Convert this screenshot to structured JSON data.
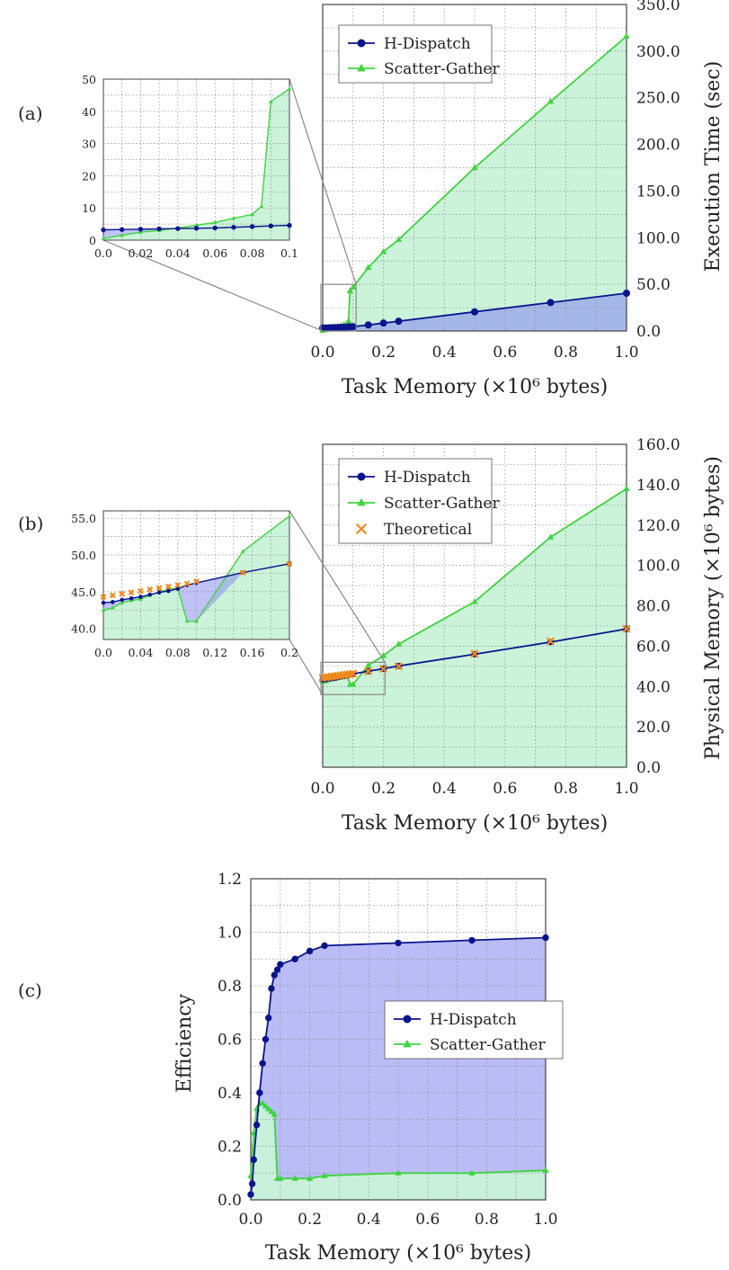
{
  "figure": {
    "colors": {
      "hdispatch": "#0a148c",
      "scatter": "#3fd43f",
      "theoretical": "#f08a1e",
      "fill_blue": "#8c8ff0",
      "fill_green": "#c8f2d8"
    },
    "panels": [
      {
        "label": "(a)",
        "main": {
          "xlabel": "Task Memory (×10⁶ bytes)",
          "ylabel": "Execution Time (sec)",
          "xticks": [
            "0.0",
            "0.2",
            "0.4",
            "0.6",
            "0.8",
            "1.0"
          ],
          "yticks": [
            "0.0",
            "50.0",
            "100.0",
            "150.0",
            "200.0",
            "250.0",
            "300.0",
            "350.0"
          ],
          "legend": [
            "H-Dispatch",
            "Scatter-Gather"
          ]
        },
        "inset": {
          "xticks": [
            "0.0",
            "0.02",
            "0.04",
            "0.06",
            "0.08",
            "0.1"
          ],
          "yticks": [
            "0",
            "10",
            "20",
            "30",
            "40",
            "50"
          ]
        }
      },
      {
        "label": "(b)",
        "main": {
          "xlabel": "Task Memory (×10⁶ bytes)",
          "ylabel": "Physical Memory (×10⁶ bytes)",
          "xticks": [
            "0.0",
            "0.2",
            "0.4",
            "0.6",
            "0.8",
            "1.0"
          ],
          "yticks": [
            "0.0",
            "20.0",
            "40.0",
            "60.0",
            "80.0",
            "100.0",
            "120.0",
            "140.0",
            "160.0"
          ],
          "legend": [
            "H-Dispatch",
            "Scatter-Gather",
            "Theoretical"
          ]
        },
        "inset": {
          "xticks": [
            "0.0",
            "0.04",
            "0.08",
            "0.12",
            "0.16",
            "0.2"
          ],
          "yticks": [
            "40.0",
            "45.0",
            "50.0",
            "55.0"
          ]
        }
      },
      {
        "label": "(c)",
        "main": {
          "xlabel": "Task Memory (×10⁶ bytes)",
          "ylabel": "Efficiency",
          "xticks": [
            "0.0",
            "0.2",
            "0.4",
            "0.6",
            "0.8",
            "1.0"
          ],
          "yticks": [
            "0.0",
            "0.2",
            "0.4",
            "0.6",
            "0.8",
            "1.0",
            "1.2"
          ],
          "legend": [
            "H-Dispatch",
            "Scatter-Gather"
          ]
        }
      }
    ]
  },
  "chart_data": [
    {
      "panel": "(a)",
      "type": "line",
      "xlabel": "Task Memory (×10⁶ bytes)",
      "ylabel": "Execution Time (sec)",
      "xlim": [
        0,
        1.0
      ],
      "ylim": [
        0,
        350
      ],
      "y_axis_side": "right",
      "grid": true,
      "legend_position": "top-left",
      "series": [
        {
          "name": "H-Dispatch",
          "marker": "circle",
          "x": [
            0.0,
            0.01,
            0.02,
            0.03,
            0.04,
            0.05,
            0.06,
            0.07,
            0.08,
            0.09,
            0.1,
            0.15,
            0.2,
            0.25,
            0.5,
            0.75,
            1.0
          ],
          "y": [
            3.2,
            3.3,
            3.4,
            3.5,
            3.6,
            3.7,
            3.8,
            4.0,
            4.2,
            4.4,
            4.6,
            6.5,
            8.5,
            10.5,
            20.5,
            30.5,
            40.5
          ]
        },
        {
          "name": "Scatter-Gather",
          "marker": "triangle",
          "x": [
            0.0,
            0.01,
            0.02,
            0.03,
            0.04,
            0.05,
            0.06,
            0.07,
            0.08,
            0.085,
            0.09,
            0.1,
            0.15,
            0.2,
            0.25,
            0.5,
            0.75,
            1.0
          ],
          "y": [
            0.5,
            1.5,
            2.5,
            3.0,
            3.8,
            4.6,
            5.5,
            6.8,
            8.0,
            10.5,
            43.0,
            47.0,
            68.0,
            85.0,
            98.0,
            175.0,
            246.0,
            316.0
          ]
        }
      ]
    },
    {
      "panel": "(a) inset",
      "type": "line",
      "xlim": [
        0,
        0.1
      ],
      "ylim": [
        0,
        50
      ],
      "grid": true,
      "series": [
        {
          "name": "H-Dispatch",
          "x": [
            0.0,
            0.01,
            0.02,
            0.03,
            0.04,
            0.05,
            0.06,
            0.07,
            0.08,
            0.09,
            0.1
          ],
          "y": [
            3.2,
            3.3,
            3.4,
            3.5,
            3.6,
            3.7,
            3.8,
            4.0,
            4.2,
            4.4,
            4.6
          ]
        },
        {
          "name": "Scatter-Gather",
          "x": [
            0.0,
            0.01,
            0.02,
            0.03,
            0.04,
            0.05,
            0.06,
            0.07,
            0.08,
            0.085,
            0.09,
            0.1
          ],
          "y": [
            0.5,
            1.5,
            2.5,
            3.0,
            3.8,
            4.6,
            5.5,
            6.8,
            8.0,
            10.5,
            43.0,
            47.0
          ]
        }
      ]
    },
    {
      "panel": "(b)",
      "type": "line",
      "xlabel": "Task Memory (×10⁶ bytes)",
      "ylabel": "Physical Memory (×10⁶ bytes)",
      "xlim": [
        0,
        1.0
      ],
      "ylim": [
        0,
        160
      ],
      "y_axis_side": "right",
      "grid": true,
      "legend_position": "top-left",
      "series": [
        {
          "name": "H-Dispatch",
          "marker": "circle",
          "x": [
            0.0,
            0.01,
            0.02,
            0.03,
            0.04,
            0.05,
            0.06,
            0.07,
            0.08,
            0.09,
            0.1,
            0.15,
            0.2,
            0.25,
            0.5,
            0.75,
            1.0
          ],
          "y": [
            43.5,
            43.6,
            43.9,
            44.1,
            44.3,
            44.6,
            44.9,
            45.1,
            45.4,
            45.9,
            46.2,
            47.6,
            48.8,
            50.2,
            56.0,
            62.0,
            68.5
          ]
        },
        {
          "name": "Scatter-Gather",
          "marker": "triangle",
          "x": [
            0.0,
            0.01,
            0.02,
            0.03,
            0.04,
            0.05,
            0.06,
            0.07,
            0.08,
            0.09,
            0.1,
            0.15,
            0.2,
            0.25,
            0.5,
            0.75,
            1.0
          ],
          "y": [
            42.5,
            42.8,
            43.5,
            43.8,
            44.0,
            44.5,
            45.0,
            45.3,
            45.5,
            41.0,
            41.0,
            50.5,
            55.3,
            61.0,
            82.0,
            114.0,
            138.0
          ]
        },
        {
          "name": "Theoretical",
          "marker": "x",
          "x": [
            0.0,
            0.01,
            0.02,
            0.03,
            0.04,
            0.05,
            0.06,
            0.07,
            0.08,
            0.09,
            0.1,
            0.15,
            0.2,
            0.25,
            0.5,
            0.75,
            1.0
          ],
          "y": [
            44.3,
            44.5,
            44.7,
            44.9,
            45.1,
            45.3,
            45.5,
            45.7,
            45.9,
            46.1,
            46.4,
            47.6,
            48.8,
            50.0,
            56.2,
            62.4,
            68.6
          ]
        }
      ]
    },
    {
      "panel": "(b) inset",
      "type": "line",
      "xlim": [
        0,
        0.2
      ],
      "ylim": [
        38.5,
        56
      ],
      "grid": true,
      "series": [
        {
          "name": "H-Dispatch",
          "x": [
            0.0,
            0.01,
            0.02,
            0.03,
            0.04,
            0.05,
            0.06,
            0.07,
            0.08,
            0.09,
            0.1,
            0.15,
            0.2
          ],
          "y": [
            43.5,
            43.6,
            43.9,
            44.1,
            44.3,
            44.6,
            44.9,
            45.1,
            45.4,
            45.9,
            46.2,
            47.6,
            48.8
          ]
        },
        {
          "name": "Scatter-Gather",
          "x": [
            0.0,
            0.01,
            0.02,
            0.03,
            0.04,
            0.05,
            0.06,
            0.07,
            0.08,
            0.09,
            0.1,
            0.15,
            0.2
          ],
          "y": [
            42.5,
            42.8,
            43.5,
            43.8,
            44.0,
            44.5,
            45.0,
            45.3,
            45.5,
            41.0,
            41.0,
            50.5,
            55.3
          ]
        },
        {
          "name": "Theoretical",
          "x": [
            0.0,
            0.01,
            0.02,
            0.03,
            0.04,
            0.05,
            0.06,
            0.07,
            0.08,
            0.09,
            0.1,
            0.15,
            0.2
          ],
          "y": [
            44.3,
            44.5,
            44.7,
            44.9,
            45.1,
            45.3,
            45.5,
            45.7,
            45.9,
            46.1,
            46.4,
            47.6,
            48.8
          ]
        }
      ]
    },
    {
      "panel": "(c)",
      "type": "line",
      "xlabel": "Task Memory (×10⁶ bytes)",
      "ylabel": "Efficiency",
      "xlim": [
        0,
        1.0
      ],
      "ylim": [
        0,
        1.2
      ],
      "y_axis_side": "left",
      "grid": true,
      "legend_position": "center-right",
      "series": [
        {
          "name": "H-Dispatch",
          "marker": "circle",
          "x": [
            0.0,
            0.005,
            0.01,
            0.02,
            0.03,
            0.04,
            0.05,
            0.06,
            0.07,
            0.08,
            0.09,
            0.1,
            0.15,
            0.2,
            0.25,
            0.5,
            0.75,
            1.0
          ],
          "y": [
            0.02,
            0.06,
            0.15,
            0.28,
            0.4,
            0.51,
            0.6,
            0.68,
            0.79,
            0.84,
            0.86,
            0.88,
            0.9,
            0.93,
            0.95,
            0.96,
            0.97,
            0.98
          ]
        },
        {
          "name": "Scatter-Gather",
          "marker": "triangle",
          "x": [
            0.0,
            0.01,
            0.02,
            0.03,
            0.04,
            0.05,
            0.06,
            0.07,
            0.08,
            0.09,
            0.1,
            0.15,
            0.2,
            0.25,
            0.5,
            0.75,
            1.0
          ],
          "y": [
            0.09,
            0.25,
            0.34,
            0.36,
            0.36,
            0.35,
            0.34,
            0.33,
            0.32,
            0.08,
            0.08,
            0.08,
            0.08,
            0.09,
            0.1,
            0.1,
            0.11
          ]
        }
      ]
    }
  ]
}
